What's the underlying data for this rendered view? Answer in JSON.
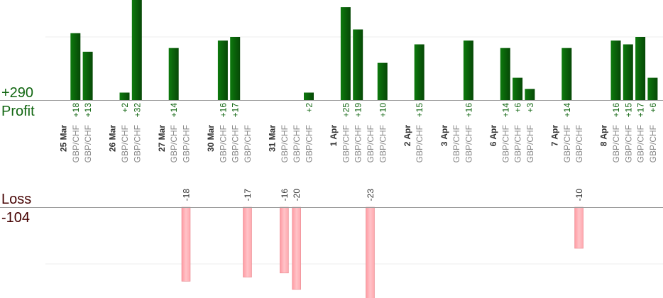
{
  "chart_data": {
    "type": "bar",
    "profit": {
      "label": "Profit",
      "total": "+290",
      "color": "#0a600a"
    },
    "loss": {
      "label": "Loss",
      "total": "-104",
      "color": "#ffb3b8"
    },
    "y_scale": {
      "profit_ref": 17,
      "loss_ref": 20
    },
    "columns": [
      {
        "date": "25 Mar"
      },
      {
        "symbol": "GBP/CHF",
        "profit": 18,
        "profit_label": "+18"
      },
      {
        "symbol": "GBP/CHF",
        "profit": 13,
        "profit_label": "+13"
      },
      {
        "gap": true
      },
      {
        "date": "26 Mar"
      },
      {
        "symbol": "GBP/CHF",
        "profit": 2,
        "profit_label": "+2"
      },
      {
        "symbol": "GBP/CHF",
        "profit": 32,
        "profit_label": "+32"
      },
      {
        "gap": true
      },
      {
        "date": "27 Mar"
      },
      {
        "symbol": "GBP/CHF",
        "profit": 14,
        "profit_label": "+14"
      },
      {
        "symbol": "GBP/CHF",
        "loss": -18,
        "loss_label": "-18"
      },
      {
        "gap": true
      },
      {
        "date": "30 Mar"
      },
      {
        "symbol": "GBP/CHF",
        "profit": 16,
        "profit_label": "+16"
      },
      {
        "symbol": "GBP/CHF",
        "profit": 17,
        "profit_label": "+17"
      },
      {
        "symbol": "GBP/CHF",
        "loss": -17,
        "loss_label": "-17"
      },
      {
        "gap": true
      },
      {
        "date": "31 Mar"
      },
      {
        "symbol": "GBP/CHF",
        "loss": -16,
        "loss_label": "-16"
      },
      {
        "symbol": "GBP/CHF",
        "loss": -20,
        "loss_label": "-20"
      },
      {
        "symbol": "GBP/CHF",
        "profit": 2,
        "profit_label": "+2"
      },
      {
        "gap": true
      },
      {
        "date": "1 Apr"
      },
      {
        "symbol": "GBP/CHF",
        "profit": 25,
        "profit_label": "+25"
      },
      {
        "symbol": "GBP/CHF",
        "profit": 19,
        "profit_label": "+19"
      },
      {
        "symbol": "GBP/CHF",
        "loss": -23,
        "loss_label": "-23"
      },
      {
        "symbol": "GBP/CHF",
        "profit": 10,
        "profit_label": "+10"
      },
      {
        "gap": true
      },
      {
        "date": "2 Apr"
      },
      {
        "symbol": "GBP/CHF",
        "profit": 15,
        "profit_label": "+15"
      },
      {
        "gap": true
      },
      {
        "date": "3 Apr"
      },
      {
        "symbol": "GBP/CHF"
      },
      {
        "symbol": "GBP/CHF",
        "profit": 16,
        "profit_label": "+16"
      },
      {
        "gap": true
      },
      {
        "date": "6 Apr"
      },
      {
        "symbol": "GBP/CHF",
        "profit": 14,
        "profit_label": "+14"
      },
      {
        "symbol": "GBP/CHF",
        "profit": 6,
        "profit_label": "+6"
      },
      {
        "symbol": "GBP/CHF",
        "profit": 3,
        "profit_label": "+3"
      },
      {
        "gap": true
      },
      {
        "date": "7 Apr"
      },
      {
        "symbol": "GBP/CHF",
        "profit": 14,
        "profit_label": "+14"
      },
      {
        "symbol": "GBP/CHF",
        "loss": -10,
        "loss_label": "-10"
      },
      {
        "gap": true
      },
      {
        "date": "8 Apr"
      },
      {
        "symbol": "GBP/CHF",
        "profit": 16,
        "profit_label": "+16"
      },
      {
        "symbol": "GBP/CHF",
        "profit": 15,
        "profit_label": "+15"
      },
      {
        "symbol": "GBP/CHF",
        "profit": 17,
        "profit_label": "+17"
      },
      {
        "symbol": "GBP/CHF",
        "profit": 6,
        "profit_label": "+6"
      }
    ]
  }
}
